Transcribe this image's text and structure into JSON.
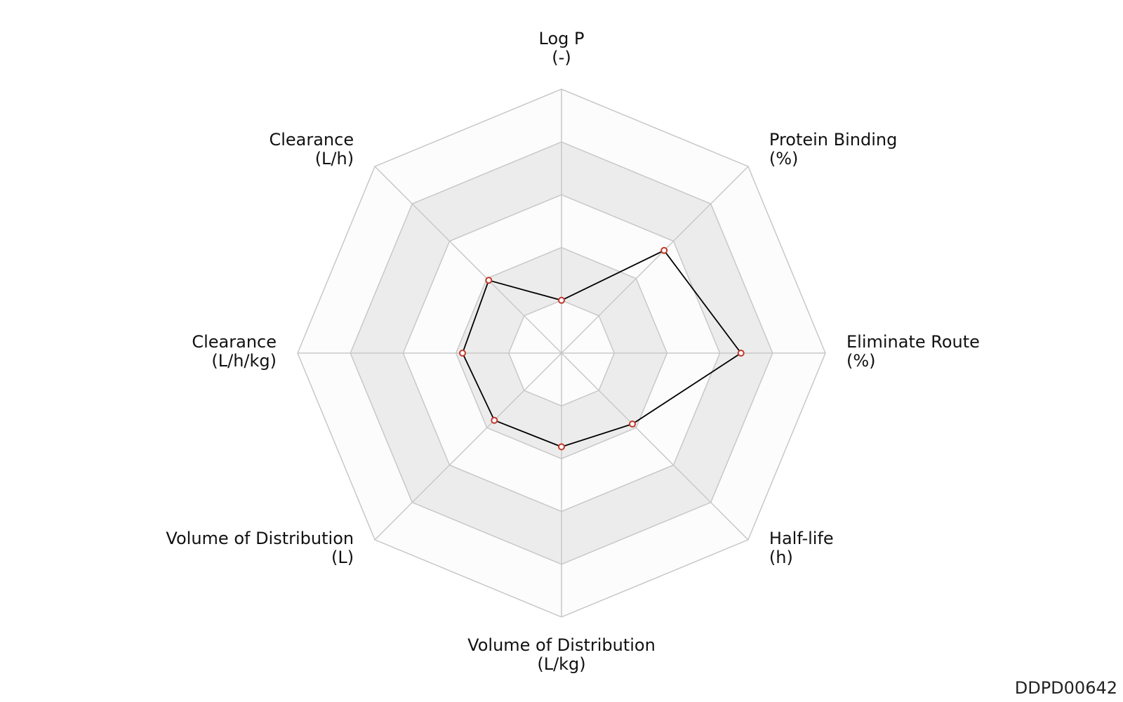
{
  "chart_data": {
    "type": "radar",
    "axes": [
      {
        "name": "Log P",
        "unit": "(-)"
      },
      {
        "name": "Protein Binding",
        "unit": "(%)"
      },
      {
        "name": "Eliminate Route",
        "unit": "(%)"
      },
      {
        "name": "Half-life",
        "unit": "(h)"
      },
      {
        "name": "Volume of Distribution",
        "unit": "(L/kg)"
      },
      {
        "name": "Volume of Distribution",
        "unit": "(L)"
      },
      {
        "name": "Clearance",
        "unit": "(L/h/kg)"
      },
      {
        "name": "Clearance",
        "unit": "(L/h)"
      }
    ],
    "range": [
      0,
      1
    ],
    "rings": 5,
    "series": [
      {
        "values": [
          0.2,
          0.55,
          0.68,
          0.38,
          0.355,
          0.36,
          0.375,
          0.39
        ]
      }
    ],
    "colors": {
      "line": "#000000",
      "marker_edge": "#c0392b",
      "marker_fill": "#ffffff",
      "band_light": "#fcfcfc",
      "band_dark": "#ececec",
      "grid": "#c8c8c8"
    },
    "grid": true
  },
  "footer": {
    "id": "DDPD00642"
  }
}
